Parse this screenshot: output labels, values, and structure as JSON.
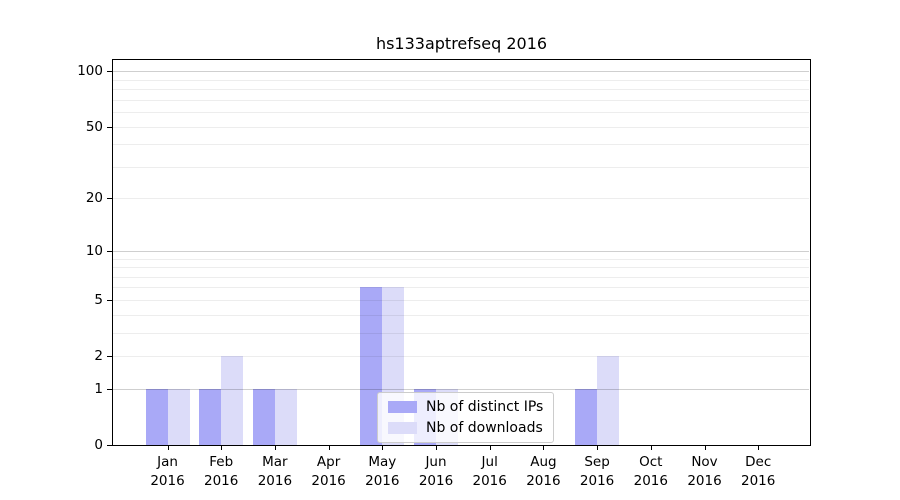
{
  "chart_data": {
    "type": "bar",
    "title": "hs133aptrefseq 2016",
    "categories": [
      "Jan 2016",
      "Feb 2016",
      "Mar 2016",
      "Apr 2016",
      "May 2016",
      "Jun 2016",
      "Jul 2016",
      "Aug 2016",
      "Sep 2016",
      "Oct 2016",
      "Nov 2016",
      "Dec 2016"
    ],
    "series": [
      {
        "name": "Nb of distinct IPs",
        "color": "#a9a9f7",
        "values": [
          1,
          1,
          1,
          0,
          6,
          1,
          0,
          0,
          1,
          0,
          0,
          0
        ]
      },
      {
        "name": "Nb of downloads",
        "color": "#dcdcf9",
        "values": [
          1,
          2,
          1,
          0,
          6,
          1,
          0,
          0,
          2,
          0,
          0,
          0
        ]
      }
    ],
    "y_axis": {
      "scale": "log1p",
      "tick_values": [
        0,
        1,
        2,
        5,
        10,
        20,
        50,
        100
      ],
      "max": 115
    },
    "x_axis": {
      "tick_label_lines": 2
    },
    "legend": {
      "position": "lower center",
      "entries": [
        "Nb of distinct IPs",
        "Nb of downloads"
      ]
    },
    "grid": {
      "major_at": [
        1,
        10,
        100
      ],
      "minor_step": "integers",
      "shown": true
    }
  }
}
